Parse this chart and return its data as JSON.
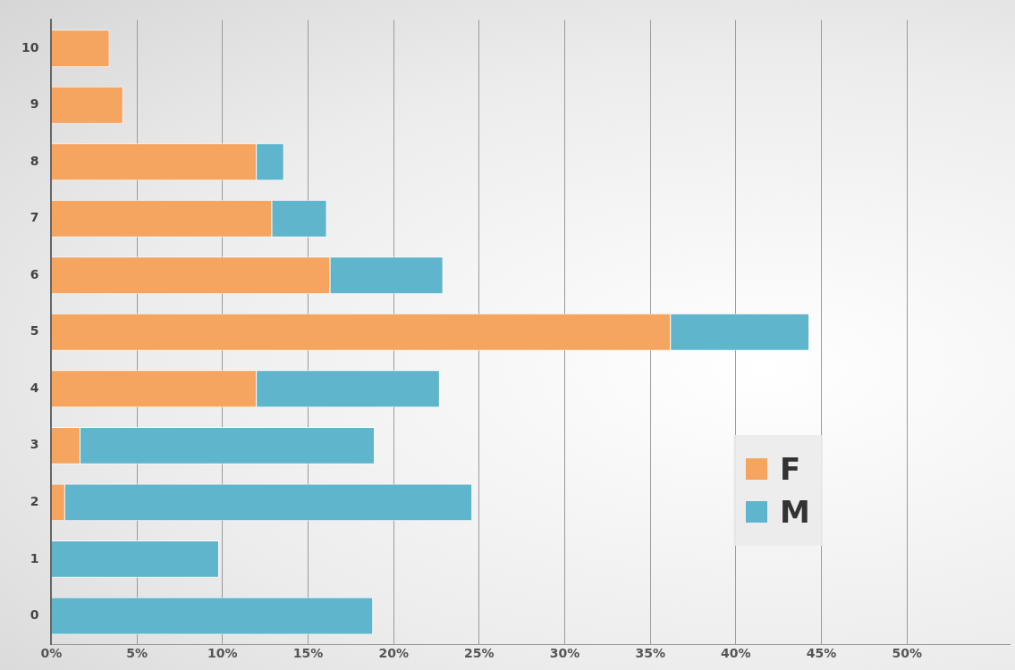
{
  "chart_data": {
    "type": "bar",
    "orientation": "horizontal",
    "stacked": true,
    "categories": [
      "10",
      "9",
      "8",
      "7",
      "6",
      "5",
      "4",
      "3",
      "2",
      "1",
      "0"
    ],
    "series": [
      {
        "name": "F",
        "color": "#f5a55f",
        "values": [
          3.4,
          4.2,
          12.0,
          12.9,
          16.3,
          36.2,
          12.0,
          1.7,
          0.8,
          null,
          null
        ]
      },
      {
        "name": "M",
        "color": "#5fb5cc",
        "values": [
          null,
          null,
          1.6,
          3.2,
          6.6,
          8.1,
          10.7,
          17.2,
          23.8,
          9.8,
          18.8
        ]
      }
    ],
    "xlim": [
      0,
      56
    ],
    "xticks": [
      {
        "value": 0,
        "label": "0%"
      },
      {
        "value": 5,
        "label": "5%"
      },
      {
        "value": 10,
        "label": "10%"
      },
      {
        "value": 15,
        "label": "15%"
      },
      {
        "value": 20,
        "label": "20%"
      },
      {
        "value": 25,
        "label": "25%"
      },
      {
        "value": 30,
        "label": "30%"
      },
      {
        "value": 35,
        "label": "35%"
      },
      {
        "value": 40,
        "label": "40%"
      },
      {
        "value": 45,
        "label": "45%"
      },
      {
        "value": 50,
        "label": "50%"
      }
    ],
    "grid": "x",
    "legend": "bottom right"
  }
}
